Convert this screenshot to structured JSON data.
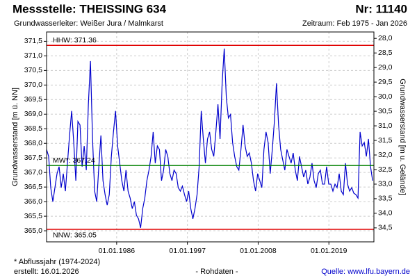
{
  "chart_data": {
    "type": "line",
    "title": "Messstelle: THEISSING 634",
    "number": "Nr: 11140",
    "subtitle": "Grundwasserleiter:  Weißer Jura / Malmkarst",
    "period": "Zeitraum: Feb 1975 - Jan 2026",
    "ylabel": "Grundwasserstand [m ü. NN]",
    "y2label": "Grundwasserstand [m u. Gelände]",
    "footnote": "* Abflussjahr (1974-2024)",
    "created": "erstellt:  16.01.2026",
    "data_note": "- Rohdaten -",
    "source": "Quelle: www.lfu.bayern.de",
    "grid": true,
    "xlim": [
      1975.1,
      2026.0
    ],
    "xticks": [
      {
        "value": 1986,
        "label": "01.01.1986"
      },
      {
        "value": 1997,
        "label": "01.01.1997"
      },
      {
        "value": 2008,
        "label": "01.01.2008"
      },
      {
        "value": 2019,
        "label": "01.01.2019"
      }
    ],
    "ylim": [
      364.62,
      371.82
    ],
    "yticks": [
      {
        "value": 365.0,
        "label": "365,0"
      },
      {
        "value": 365.5,
        "label": "365,5"
      },
      {
        "value": 366.0,
        "label": "366,0"
      },
      {
        "value": 366.5,
        "label": "366,5"
      },
      {
        "value": 367.0,
        "label": "367,0"
      },
      {
        "value": 367.5,
        "label": "367,5"
      },
      {
        "value": 368.0,
        "label": "368,0"
      },
      {
        "value": 368.5,
        "label": "368,5"
      },
      {
        "value": 369.0,
        "label": "369,0"
      },
      {
        "value": 369.5,
        "label": "369,5"
      },
      {
        "value": 370.0,
        "label": "370,0"
      },
      {
        "value": 370.5,
        "label": "370,5"
      },
      {
        "value": 371.0,
        "label": "371,0"
      },
      {
        "value": 371.5,
        "label": "371,5"
      }
    ],
    "y2lim": [
      34.98,
      27.78
    ],
    "y2ticks": [
      {
        "value": 28.0,
        "label": "28,0"
      },
      {
        "value": 28.5,
        "label": "28,5"
      },
      {
        "value": 29.0,
        "label": "29,0"
      },
      {
        "value": 29.5,
        "label": "29,5"
      },
      {
        "value": 30.0,
        "label": "30,0"
      },
      {
        "value": 30.5,
        "label": "30,5"
      },
      {
        "value": 31.0,
        "label": "31,0"
      },
      {
        "value": 31.5,
        "label": "31,5"
      },
      {
        "value": 32.0,
        "label": "32,0"
      },
      {
        "value": 32.5,
        "label": "32,5"
      },
      {
        "value": 33.0,
        "label": "33,0"
      },
      {
        "value": 33.5,
        "label": "33,5"
      },
      {
        "value": 34.0,
        "label": "34,0"
      },
      {
        "value": 34.5,
        "label": "34,5"
      }
    ],
    "reference_lines": [
      {
        "label": "HHW: 371.36",
        "value": 371.36,
        "color": "#e00000"
      },
      {
        "label": "MW*: 367.24",
        "value": 367.24,
        "color": "#008000"
      },
      {
        "label": "NNW: 365.05",
        "value": 365.05,
        "color": "#e00000"
      }
    ],
    "x": [
      1975.1,
      1975.425,
      1975.75,
      1976.075,
      1976.4,
      1976.725,
      1977.05,
      1977.375,
      1977.7,
      1978.025,
      1978.35,
      1978.675,
      1979.0,
      1979.325,
      1979.65,
      1979.975,
      1980.3,
      1980.625,
      1980.95,
      1981.275,
      1981.6,
      1981.925,
      1982.25,
      1982.575,
      1982.9,
      1983.225,
      1983.55,
      1983.875,
      1984.2,
      1984.525,
      1984.85,
      1985.175,
      1985.5,
      1985.825,
      1986.15,
      1986.475,
      1986.8,
      1987.125,
      1987.45,
      1987.775,
      1988.1,
      1988.425,
      1988.75,
      1989.075,
      1989.4,
      1989.725,
      1990.05,
      1990.375,
      1990.7,
      1991.025,
      1991.35,
      1991.675,
      1992.0,
      1992.325,
      1992.65,
      1992.975,
      1993.3,
      1993.625,
      1993.95,
      1994.275,
      1994.6,
      1994.925,
      1995.25,
      1995.575,
      1995.9,
      1996.225,
      1996.55,
      1996.875,
      1997.2,
      1997.525,
      1997.85,
      1998.175,
      1998.5,
      1998.825,
      1999.15,
      1999.475,
      1999.8,
      2000.125,
      2000.45,
      2000.775,
      2001.1,
      2001.425,
      2001.75,
      2002.075,
      2002.4,
      2002.725,
      2003.05,
      2003.375,
      2003.7,
      2004.025,
      2004.35,
      2004.675,
      2005.0,
      2005.325,
      2005.65,
      2005.975,
      2006.3,
      2006.625,
      2006.95,
      2007.275,
      2007.6,
      2007.925,
      2008.25,
      2008.575,
      2008.9,
      2009.225,
      2009.55,
      2009.875,
      2010.2,
      2010.525,
      2010.85,
      2011.175,
      2011.5,
      2011.825,
      2012.15,
      2012.475,
      2012.8,
      2013.125,
      2013.45,
      2013.775,
      2014.1,
      2014.425,
      2014.75,
      2015.075,
      2015.4,
      2015.725,
      2016.05,
      2016.375,
      2016.7,
      2017.025,
      2017.35,
      2017.675,
      2018.0,
      2018.325,
      2018.65,
      2018.975,
      2019.3,
      2019.625,
      2019.95,
      2020.275,
      2020.6,
      2020.925,
      2021.25,
      2021.575,
      2021.9,
      2022.225,
      2022.55,
      2022.875,
      2023.2,
      2023.525,
      2023.85,
      2024.175,
      2024.5,
      2024.825,
      2025.15,
      2025.475,
      2025.8
    ],
    "series": [
      {
        "color": "#0000cc",
        "values": [
          367.79,
          367.55,
          366.48,
          366.0,
          366.48,
          366.96,
          367.2,
          366.48,
          366.96,
          366.36,
          367.32,
          368.27,
          369.11,
          368.03,
          366.72,
          368.75,
          368.63,
          367.2,
          367.91,
          367.08,
          369.34,
          370.82,
          368.15,
          366.36,
          366.0,
          367.2,
          368.27,
          366.72,
          366.24,
          365.88,
          366.24,
          367.55,
          368.39,
          369.11,
          367.91,
          367.32,
          366.72,
          366.36,
          367.08,
          366.36,
          366.12,
          365.76,
          366.0,
          365.53,
          365.41,
          365.1,
          365.76,
          366.12,
          366.72,
          367.08,
          367.55,
          368.39,
          367.32,
          367.91,
          367.79,
          366.72,
          367.08,
          367.79,
          367.55,
          366.96,
          366.72,
          367.08,
          366.96,
          366.48,
          366.36,
          366.53,
          366.24,
          366.0,
          366.36,
          365.76,
          365.41,
          365.76,
          366.24,
          367.2,
          369.11,
          368.15,
          367.32,
          368.15,
          368.39,
          367.79,
          367.55,
          368.39,
          369.34,
          368.15,
          370.06,
          371.25,
          369.58,
          368.87,
          368.99,
          368.03,
          367.55,
          367.2,
          367.08,
          367.79,
          368.63,
          367.91,
          367.55,
          367.67,
          367.32,
          366.72,
          366.36,
          366.96,
          366.72,
          366.48,
          367.79,
          368.39,
          368.03,
          366.96,
          367.79,
          368.75,
          370.06,
          368.63,
          367.79,
          367.43,
          367.08,
          367.79,
          367.55,
          367.32,
          367.67,
          367.08,
          366.72,
          367.55,
          367.2,
          366.84,
          367.08,
          366.6,
          366.84,
          367.32,
          366.72,
          366.48,
          366.96,
          367.08,
          366.6,
          366.6,
          367.2,
          366.6,
          366.6,
          366.36,
          366.6,
          366.48,
          366.96,
          366.36,
          366.24,
          367.32,
          366.6,
          366.36,
          366.48,
          366.29,
          366.24,
          366.12,
          368.39,
          367.91,
          368.03,
          367.55,
          368.15,
          367.2,
          366.72
        ]
      }
    ]
  }
}
